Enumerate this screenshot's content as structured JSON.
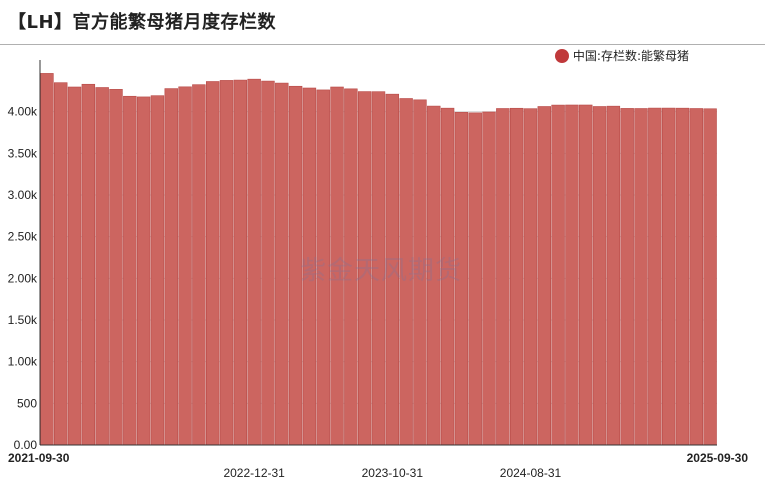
{
  "title": "【LH】官方能繁母猪月度存栏数",
  "watermark": "紫金天风期货",
  "legend": {
    "label": "中国:存栏数:能繁母猪",
    "color": "#c0393b"
  },
  "colors": {
    "bar_fill": "#cc6560",
    "bar_stroke": "#b84a47",
    "axis": "#333333",
    "grid": "#d8d8d8"
  },
  "chart_data": {
    "type": "bar",
    "title": "【LH】官方能繁母猪月度存栏数",
    "xlabel": "",
    "ylabel": "",
    "ylim": [
      0,
      4500
    ],
    "y_ticks": [
      0,
      500,
      1000,
      1500,
      2000,
      2500,
      3000,
      3500,
      4000
    ],
    "y_tick_labels": [
      "0.00",
      "500",
      "1.00k",
      "1.50k",
      "2.00k",
      "2.50k",
      "3.00k",
      "3.50k",
      "4.00k"
    ],
    "x_tick_labels": [
      {
        "label": "2021-09-30",
        "index": 0,
        "bold": true
      },
      {
        "label": "2022-12-31",
        "index": 15,
        "bold": false
      },
      {
        "label": "2023-10-31",
        "index": 25,
        "bold": false
      },
      {
        "label": "2024-08-31",
        "index": 35,
        "bold": false
      },
      {
        "label": "2025-09-30",
        "index": 48,
        "bold": true
      }
    ],
    "grid": true,
    "legend_position": "top-right",
    "categories": [
      "2021-09",
      "2021-10",
      "2021-11",
      "2021-12",
      "2022-01",
      "2022-02",
      "2022-03",
      "2022-04",
      "2022-05",
      "2022-06",
      "2022-07",
      "2022-08",
      "2022-09",
      "2022-10",
      "2022-11",
      "2022-12",
      "2023-01",
      "2023-02",
      "2023-03",
      "2023-04",
      "2023-05",
      "2023-06",
      "2023-07",
      "2023-08",
      "2023-09",
      "2023-10",
      "2023-11",
      "2023-12",
      "2024-01",
      "2024-02",
      "2024-03",
      "2024-04",
      "2024-05",
      "2024-06",
      "2024-07",
      "2024-08",
      "2024-09",
      "2024-10",
      "2024-11",
      "2024-12",
      "2025-01",
      "2025-02",
      "2025-03",
      "2025-04",
      "2025-05",
      "2025-06",
      "2025-07",
      "2025-08",
      "2025-09"
    ],
    "series": [
      {
        "name": "中国:存栏数:能繁母猪",
        "values": [
          4459,
          4348,
          4296,
          4329,
          4290,
          4268,
          4185,
          4177,
          4192,
          4277,
          4298,
          4324,
          4362,
          4375,
          4379,
          4390,
          4367,
          4343,
          4305,
          4284,
          4261,
          4296,
          4274,
          4241,
          4240,
          4210,
          4158,
          4142,
          4067,
          4042,
          3992,
          3986,
          3996,
          4038,
          4041,
          4036,
          4062,
          4079,
          4080,
          4080,
          4062,
          4066,
          4039,
          4038,
          4043,
          4043,
          4042,
          4038,
          4035
        ]
      }
    ]
  }
}
